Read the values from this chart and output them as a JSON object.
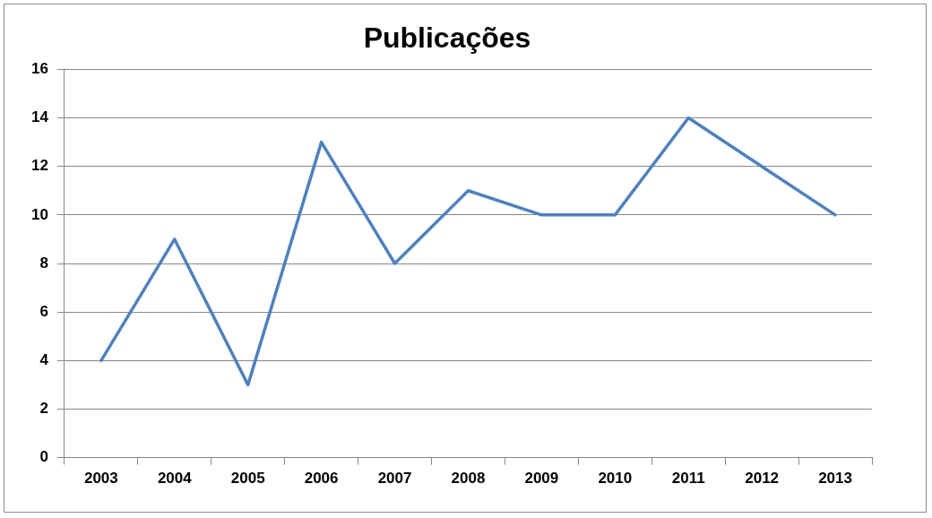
{
  "chart_data": {
    "type": "line",
    "title": "Publicações",
    "categories": [
      "2003",
      "2004",
      "2005",
      "2006",
      "2007",
      "2008",
      "2009",
      "2010",
      "2011",
      "2012",
      "2013"
    ],
    "values": [
      4,
      9,
      3,
      13,
      8,
      11,
      10,
      10,
      14,
      12,
      10
    ],
    "color": "#4f81bd",
    "ylim": [
      0,
      16
    ],
    "yticks": [
      0,
      2,
      4,
      6,
      8,
      10,
      12,
      14,
      16
    ],
    "grid": "y",
    "legend": false
  }
}
